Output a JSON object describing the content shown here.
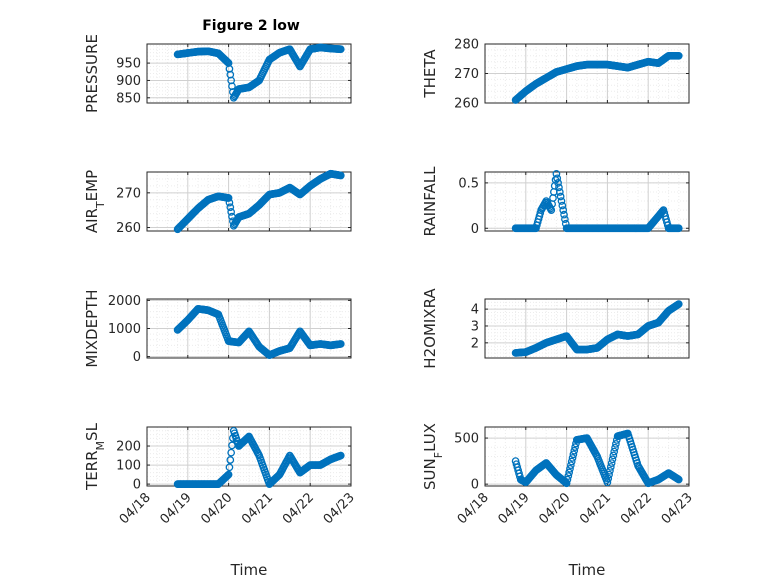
{
  "figure": {
    "title": "Figure 2 low",
    "background": "#ffffff",
    "marker_color": "#0072BD"
  },
  "chart_data": [
    {
      "type": "scatter",
      "marker": "circle",
      "title": "Figure 2 low",
      "ylabel": "PRESSURE",
      "xlabel": "",
      "xlim": [
        "04/18",
        "04/23"
      ],
      "xticks": [
        "04/18",
        "04/19",
        "04/20",
        "04/21",
        "04/22",
        "04/23"
      ],
      "xticklabels_shown": false,
      "ylim": [
        835,
        1005
      ],
      "yticks": [
        850,
        900,
        950
      ],
      "grid": true,
      "minor_grid": true,
      "x": [
        "04/18 18:00",
        "04/19 00:00",
        "04/19 06:00",
        "04/19 12:00",
        "04/19 18:00",
        "04/20 00:00",
        "04/20 03:00",
        "04/20 06:00",
        "04/20 12:00",
        "04/20 18:00",
        "04/21 00:00",
        "04/21 06:00",
        "04/21 12:00",
        "04/21 18:00",
        "04/22 00:00",
        "04/22 06:00",
        "04/22 12:00",
        "04/22 18:00"
      ],
      "y": [
        975,
        979,
        983,
        984,
        978,
        950,
        850,
        875,
        880,
        900,
        960,
        980,
        990,
        940,
        990,
        995,
        992,
        990
      ]
    },
    {
      "type": "scatter",
      "marker": "circle",
      "ylabel": "THETA",
      "xlabel": "",
      "xlim": [
        "04/18",
        "04/23"
      ],
      "xticks": [
        "04/18",
        "04/19",
        "04/20",
        "04/21",
        "04/22",
        "04/23"
      ],
      "xticklabels_shown": false,
      "ylim": [
        260,
        280
      ],
      "yticks": [
        260,
        270,
        280
      ],
      "grid": true,
      "minor_grid": true,
      "x": [
        "04/18 18:00",
        "04/19 00:00",
        "04/19 06:00",
        "04/19 12:00",
        "04/19 18:00",
        "04/20 00:00",
        "04/20 06:00",
        "04/20 12:00",
        "04/20 18:00",
        "04/21 00:00",
        "04/21 06:00",
        "04/21 12:00",
        "04/21 18:00",
        "04/22 00:00",
        "04/22 06:00",
        "04/22 12:00",
        "04/22 18:00"
      ],
      "y": [
        261,
        264,
        266.5,
        268.5,
        270.5,
        271.5,
        272.5,
        273,
        273,
        273,
        272.5,
        272,
        273,
        274,
        273.5,
        276,
        276
      ]
    },
    {
      "type": "scatter",
      "marker": "circle",
      "ylabel": "AIR_TEMP",
      "xlabel": "",
      "xlim": [
        "04/18",
        "04/23"
      ],
      "xticks": [
        "04/18",
        "04/19",
        "04/20",
        "04/21",
        "04/22",
        "04/23"
      ],
      "xticklabels_shown": false,
      "ylim": [
        259,
        276
      ],
      "yticks": [
        260,
        270
      ],
      "grid": true,
      "minor_grid": true,
      "x": [
        "04/18 18:00",
        "04/19 00:00",
        "04/19 06:00",
        "04/19 12:00",
        "04/19 18:00",
        "04/20 00:00",
        "04/20 03:00",
        "04/20 06:00",
        "04/20 12:00",
        "04/20 18:00",
        "04/21 00:00",
        "04/21 06:00",
        "04/21 12:00",
        "04/21 18:00",
        "04/22 00:00",
        "04/22 06:00",
        "04/22 12:00",
        "04/22 18:00"
      ],
      "y": [
        259.5,
        262.5,
        265.5,
        268,
        269,
        268.5,
        260.5,
        263,
        264,
        266.5,
        269.5,
        270,
        271.5,
        269.5,
        272,
        274,
        275.5,
        275
      ]
    },
    {
      "type": "scatter",
      "marker": "circle",
      "ylabel": "RAINFALL",
      "xlabel": "",
      "xlim": [
        "04/18",
        "04/23"
      ],
      "xticks": [
        "04/18",
        "04/19",
        "04/20",
        "04/21",
        "04/22",
        "04/23"
      ],
      "xticklabels_shown": false,
      "ylim": [
        -0.03,
        0.62
      ],
      "yticks": [
        0,
        0.5
      ],
      "grid": true,
      "minor_grid": true,
      "x": [
        "04/18 18:00",
        "04/19 00:00",
        "04/19 06:00",
        "04/19 09:00",
        "04/19 12:00",
        "04/19 15:00",
        "04/19 18:00",
        "04/20 00:00",
        "04/20 06:00",
        "04/20 12:00",
        "04/21 00:00",
        "04/21 12:00",
        "04/22 00:00",
        "04/22 09:00",
        "04/22 12:00",
        "04/22 18:00"
      ],
      "y": [
        0,
        0,
        0,
        0.2,
        0.3,
        0.2,
        0.6,
        0,
        0,
        0,
        0,
        0,
        0,
        0.2,
        0,
        0
      ]
    },
    {
      "type": "scatter",
      "marker": "circle",
      "ylabel": "MIXDEPTH",
      "xlabel": "",
      "xlim": [
        "04/18",
        "04/23"
      ],
      "xticks": [
        "04/18",
        "04/19",
        "04/20",
        "04/21",
        "04/22",
        "04/23"
      ],
      "xticklabels_shown": false,
      "ylim": [
        -50,
        2050
      ],
      "yticks": [
        0,
        1000,
        2000
      ],
      "grid": true,
      "minor_grid": true,
      "x": [
        "04/18 18:00",
        "04/19 00:00",
        "04/19 06:00",
        "04/19 12:00",
        "04/19 18:00",
        "04/20 00:00",
        "04/20 06:00",
        "04/20 12:00",
        "04/20 18:00",
        "04/21 00:00",
        "04/21 06:00",
        "04/21 12:00",
        "04/21 18:00",
        "04/22 00:00",
        "04/22 06:00",
        "04/22 12:00",
        "04/22 18:00"
      ],
      "y": [
        950,
        1300,
        1700,
        1650,
        1500,
        550,
        500,
        900,
        350,
        50,
        200,
        300,
        900,
        400,
        450,
        400,
        450
      ]
    },
    {
      "type": "scatter",
      "marker": "circle",
      "ylabel": "H2OMIXRA",
      "xlabel": "",
      "xlim": [
        "04/18",
        "04/23"
      ],
      "xticks": [
        "04/18",
        "04/19",
        "04/20",
        "04/21",
        "04/22",
        "04/23"
      ],
      "xticklabels_shown": false,
      "ylim": [
        1.1,
        4.6
      ],
      "yticks": [
        2,
        3,
        4
      ],
      "grid": true,
      "minor_grid": true,
      "x": [
        "04/18 18:00",
        "04/19 00:00",
        "04/19 06:00",
        "04/19 12:00",
        "04/19 18:00",
        "04/20 00:00",
        "04/20 06:00",
        "04/20 12:00",
        "04/20 18:00",
        "04/21 00:00",
        "04/21 06:00",
        "04/21 12:00",
        "04/21 18:00",
        "04/22 00:00",
        "04/22 06:00",
        "04/22 12:00",
        "04/22 18:00"
      ],
      "y": [
        1.4,
        1.45,
        1.7,
        2.0,
        2.2,
        2.4,
        1.6,
        1.6,
        1.7,
        2.2,
        2.5,
        2.4,
        2.5,
        3.0,
        3.2,
        3.9,
        4.3
      ]
    },
    {
      "type": "scatter",
      "marker": "circle",
      "ylabel": "TERR_MSL",
      "xlabel": "Time",
      "xlim": [
        "04/18",
        "04/23"
      ],
      "xticks": [
        "04/18",
        "04/19",
        "04/20",
        "04/21",
        "04/22",
        "04/23"
      ],
      "ylim": [
        -10,
        300
      ],
      "yticks": [
        0,
        100,
        200
      ],
      "grid": true,
      "minor_grid": true,
      "x": [
        "04/18 18:00",
        "04/19 00:00",
        "04/19 06:00",
        "04/19 12:00",
        "04/19 18:00",
        "04/20 00:00",
        "04/20 03:00",
        "04/20 06:00",
        "04/20 12:00",
        "04/20 18:00",
        "04/21 00:00",
        "04/21 06:00",
        "04/21 12:00",
        "04/21 18:00",
        "04/22 00:00",
        "04/22 06:00",
        "04/22 12:00",
        "04/22 18:00"
      ],
      "y": [
        0,
        0,
        0,
        0,
        0,
        50,
        280,
        200,
        250,
        150,
        0,
        50,
        150,
        60,
        100,
        100,
        130,
        150
      ]
    },
    {
      "type": "scatter",
      "marker": "circle",
      "ylabel": "SUN_FLUX",
      "xlabel": "Time",
      "xlim": [
        "04/18",
        "04/23"
      ],
      "xticks": [
        "04/18",
        "04/19",
        "04/20",
        "04/21",
        "04/22",
        "04/23"
      ],
      "ylim": [
        -20,
        620
      ],
      "yticks": [
        0,
        500
      ],
      "grid": true,
      "minor_grid": true,
      "x": [
        "04/18 18:00",
        "04/18 21:00",
        "04/19 00:00",
        "04/19 06:00",
        "04/19 12:00",
        "04/19 18:00",
        "04/20 00:00",
        "04/20 06:00",
        "04/20 12:00",
        "04/20 18:00",
        "04/21 00:00",
        "04/21 06:00",
        "04/21 12:00",
        "04/21 18:00",
        "04/22 00:00",
        "04/22 06:00",
        "04/22 12:00",
        "04/22 18:00"
      ],
      "y": [
        250,
        50,
        20,
        150,
        230,
        100,
        10,
        480,
        500,
        300,
        20,
        520,
        550,
        200,
        10,
        50,
        120,
        50
      ]
    }
  ]
}
